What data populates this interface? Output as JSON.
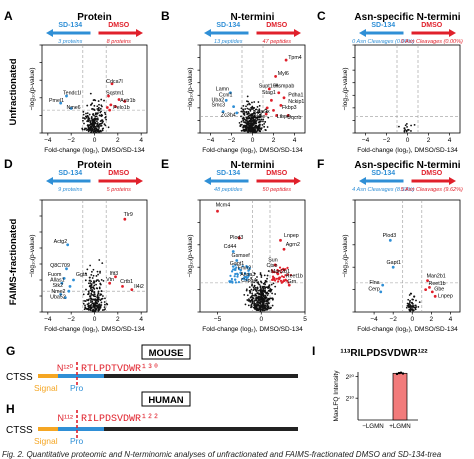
{
  "figure": {
    "caption": "Fig. 2. Quantitative proteomic and N-terminomic analyses of unfractionated and FAIMS-fractionated DMSO and SD-134-trea",
    "row_labels": [
      "Unfractionated",
      "FAIMS-fractionated"
    ],
    "common": {
      "xlabel": "Fold-change (log₂), DMSO/SD-134",
      "ylabel": "−log₁₀(p-value)",
      "left_arrow": "SD-134",
      "right_arrow": "DMSO"
    },
    "colors": {
      "blue": "#2f8fd6",
      "red": "#e0202b",
      "point": "#111111",
      "dashed": "#9a9a9a",
      "signal": "#f5a623",
      "pro": "#2f8fd6",
      "chain": "#222222",
      "bar": "#f27b7b"
    }
  },
  "chart_data": [
    {
      "panel": "A",
      "type": "scatter",
      "title": "Protein",
      "left_count": "3 proteins",
      "right_count": "8 proteins",
      "xlim": [
        -4.5,
        4.5
      ],
      "xticks": [
        -4,
        -2,
        0,
        2,
        4
      ],
      "ylim": [
        0,
        5
      ],
      "labels": [
        {
          "text": "Cdca7l",
          "x": 1.0,
          "y": 2.85,
          "color": "red"
        },
        {
          "text": "Tendc1l",
          "x": -2.7,
          "y": 2.2,
          "color": "red"
        },
        {
          "text": "Sqstm1",
          "x": 1.0,
          "y": 2.2,
          "color": "red"
        },
        {
          "text": "Pmel1",
          "x": -3.9,
          "y": 1.75,
          "color": "red"
        },
        {
          "text": "Actr1b",
          "x": 2.2,
          "y": 1.75,
          "color": "red"
        },
        {
          "text": "Nme6",
          "x": -2.4,
          "y": 1.35,
          "color": "red"
        },
        {
          "text": "Pelo1b",
          "x": 1.6,
          "y": 1.35,
          "color": "red"
        }
      ],
      "highlight": [
        {
          "x": 1.5,
          "y": 2.8,
          "c": "red"
        },
        {
          "x": 1.2,
          "y": 2.1,
          "c": "red"
        },
        {
          "x": 2.1,
          "y": 1.9,
          "c": "red"
        },
        {
          "x": 1.8,
          "y": 1.5,
          "c": "red"
        },
        {
          "x": 1.4,
          "y": 1.6,
          "c": "red"
        },
        {
          "x": 2.6,
          "y": 1.8,
          "c": "red"
        },
        {
          "x": 1.3,
          "y": 1.3,
          "c": "red"
        },
        {
          "x": 1.1,
          "y": 1.45,
          "c": "red"
        },
        {
          "x": -2.4,
          "y": 2.1,
          "c": "blue"
        },
        {
          "x": -2.9,
          "y": 1.7,
          "c": "blue"
        },
        {
          "x": -2.0,
          "y": 1.4,
          "c": "blue"
        }
      ],
      "cloud": {
        "n": 230,
        "sx": 0.8,
        "ymax": 2.2
      }
    },
    {
      "panel": "B",
      "type": "scatter",
      "title": "N-termini",
      "left_count": "13 peptides",
      "right_count": "47 peptides",
      "xlim": [
        -5,
        5
      ],
      "xticks": [
        -4,
        -2,
        0,
        2,
        4
      ],
      "ylim": [
        0,
        7
      ],
      "labels": [
        {
          "text": "Tpm4",
          "x": 3.4,
          "y": 5.9,
          "color": "red"
        },
        {
          "text": "Myl6",
          "x": 2.4,
          "y": 4.6,
          "color": "red"
        },
        {
          "text": "Supt16h",
          "x": 0.6,
          "y": 3.6,
          "color": "red"
        },
        {
          "text": "Hsmpab",
          "x": 2.1,
          "y": 3.6,
          "color": "red"
        },
        {
          "text": "Stag1",
          "x": 0.9,
          "y": 3.1,
          "color": "red"
        },
        {
          "text": "Lamn",
          "x": -3.5,
          "y": 3.4,
          "color": "red"
        },
        {
          "text": "Ccnl1",
          "x": -3.2,
          "y": 2.9,
          "color": "red"
        },
        {
          "text": "Uba2",
          "x": -3.9,
          "y": 2.5,
          "color": "red"
        },
        {
          "text": "Smc3",
          "x": -3.9,
          "y": 2.1,
          "color": "red"
        },
        {
          "text": "Pdha1",
          "x": 3.4,
          "y": 2.9,
          "color": "red"
        },
        {
          "text": "Nckip1",
          "x": 3.4,
          "y": 2.4,
          "color": "red"
        },
        {
          "text": "Fkbp3",
          "x": 2.8,
          "y": 1.9,
          "color": "red"
        },
        {
          "text": "Zc3h4",
          "x": -3.0,
          "y": 1.3,
          "color": "red"
        },
        {
          "text": "Usp9x",
          "x": 0.2,
          "y": 1.6,
          "color": "red"
        },
        {
          "text": "Ltbp4",
          "x": 2.3,
          "y": 1.2,
          "color": "red"
        },
        {
          "text": "Gsdme",
          "x": -0.4,
          "y": 1.2,
          "color": "red"
        },
        {
          "text": "Uqcrb",
          "x": 3.3,
          "y": 1.1,
          "color": "red"
        }
      ],
      "highlight": [
        {
          "x": 3.2,
          "y": 5.8,
          "c": "red"
        },
        {
          "x": 2.2,
          "y": 4.5,
          "c": "red"
        },
        {
          "x": 1.6,
          "y": 3.5,
          "c": "red"
        },
        {
          "x": 2.5,
          "y": 3.2,
          "c": "red"
        },
        {
          "x": 3.0,
          "y": 2.8,
          "c": "red"
        },
        {
          "x": 1.8,
          "y": 2.6,
          "c": "red"
        },
        {
          "x": 2.7,
          "y": 2.2,
          "c": "red"
        },
        {
          "x": 2.0,
          "y": 1.8,
          "c": "red"
        },
        {
          "x": 1.4,
          "y": 2.0,
          "c": "red"
        },
        {
          "x": 3.4,
          "y": 1.4,
          "c": "red"
        },
        {
          "x": 1.3,
          "y": 1.5,
          "c": "red"
        },
        {
          "x": 2.3,
          "y": 1.4,
          "c": "red"
        },
        {
          "x": -2.1,
          "y": 3.2,
          "c": "blue"
        },
        {
          "x": -2.5,
          "y": 2.6,
          "c": "blue"
        },
        {
          "x": -1.8,
          "y": 2.1,
          "c": "blue"
        },
        {
          "x": -2.8,
          "y": 1.7,
          "c": "blue"
        },
        {
          "x": -1.5,
          "y": 1.6,
          "c": "blue"
        }
      ],
      "cloud": {
        "n": 360,
        "sx": 1.0,
        "ymax": 3.2
      }
    },
    {
      "panel": "C",
      "type": "scatter",
      "title": "Asn-specific N-termini",
      "left_count": "0 Asn Cleavages (0.00%)",
      "right_count": "0 Asn Cleavages (0.00%)",
      "xlim": [
        -5,
        5
      ],
      "xticks": [
        -4,
        -2,
        0,
        2,
        4
      ],
      "ylim": [
        0,
        7
      ],
      "labels": [],
      "highlight": [],
      "cloud": {
        "n": 16,
        "sx": 0.5,
        "ymax": 0.9
      }
    },
    {
      "panel": "D",
      "type": "scatter",
      "title": "Protein",
      "left_count": "9 proteins",
      "right_count": "5 proteins",
      "xlim": [
        -4.5,
        4.5
      ],
      "xticks": [
        -4,
        -2,
        0,
        2,
        4
      ],
      "ylim": [
        0,
        7
      ],
      "labels": [
        {
          "text": "Tlr9",
          "x": 2.5,
          "y": 6.0,
          "color": "red"
        },
        {
          "text": "Actg2",
          "x": -3.5,
          "y": 4.3,
          "color": "red"
        },
        {
          "text": "Q8C709",
          "x": -3.8,
          "y": 2.8,
          "color": "red"
        },
        {
          "text": "Fuom",
          "x": -4.0,
          "y": 2.25,
          "color": "red"
        },
        {
          "text": "Allas1",
          "x": -3.8,
          "y": 1.9,
          "color": "red"
        },
        {
          "text": "Ggta",
          "x": -1.6,
          "y": 2.25,
          "color": "red"
        },
        {
          "text": "Ifit3",
          "x": 1.3,
          "y": 2.3,
          "color": "red"
        },
        {
          "text": "Vtn",
          "x": 1.0,
          "y": 1.95,
          "color": "red"
        },
        {
          "text": "Stk2",
          "x": -3.6,
          "y": 1.55,
          "color": "red"
        },
        {
          "text": "Nme2",
          "x": -3.7,
          "y": 1.2,
          "color": "red"
        },
        {
          "text": "Crtb1",
          "x": 2.2,
          "y": 1.8,
          "color": "red"
        },
        {
          "text": "Il4i2",
          "x": 3.4,
          "y": 1.5,
          "color": "red"
        },
        {
          "text": "Uba52",
          "x": -3.8,
          "y": 0.85,
          "color": "red"
        }
      ],
      "highlight": [
        {
          "x": 2.6,
          "y": 5.8,
          "c": "red"
        },
        {
          "x": 1.8,
          "y": 2.2,
          "c": "red"
        },
        {
          "x": 1.3,
          "y": 1.8,
          "c": "red"
        },
        {
          "x": 2.4,
          "y": 1.6,
          "c": "red"
        },
        {
          "x": 3.2,
          "y": 1.4,
          "c": "red"
        },
        {
          "x": -2.3,
          "y": 4.2,
          "c": "blue"
        },
        {
          "x": -2.4,
          "y": 2.7,
          "c": "blue"
        },
        {
          "x": -2.6,
          "y": 2.1,
          "c": "blue"
        },
        {
          "x": -2.8,
          "y": 1.8,
          "c": "blue"
        },
        {
          "x": -2.1,
          "y": 1.6,
          "c": "blue"
        },
        {
          "x": -2.2,
          "y": 1.3,
          "c": "blue"
        },
        {
          "x": -1.8,
          "y": 2.0,
          "c": "blue"
        },
        {
          "x": -2.9,
          "y": 1.1,
          "c": "blue"
        },
        {
          "x": -2.5,
          "y": 0.9,
          "c": "blue"
        }
      ],
      "cloud": {
        "n": 230,
        "sx": 0.75,
        "ymax": 3.3
      }
    },
    {
      "panel": "E",
      "type": "scatter",
      "title": "N-termini",
      "left_count": "48 peptides",
      "right_count": "50 peptides",
      "xlim": [
        -7,
        5
      ],
      "xticks": [
        -5,
        0,
        5
      ],
      "ylim": [
        0,
        5
      ],
      "labels": [
        {
          "text": "Mcm4",
          "x": -5.2,
          "y": 4.7,
          "color": "red"
        },
        {
          "text": "Plod3",
          "x": -3.6,
          "y": 3.25,
          "color": "red"
        },
        {
          "text": "Lnpep",
          "x": 2.6,
          "y": 3.35,
          "color": "red"
        },
        {
          "text": "Agrn2",
          "x": 2.8,
          "y": 2.95,
          "color": "red"
        },
        {
          "text": "Cd44",
          "x": -4.3,
          "y": 2.85,
          "color": "red"
        },
        {
          "text": "Gsmsef",
          "x": -3.4,
          "y": 2.45,
          "color": "red"
        },
        {
          "text": "Gapt1",
          "x": -3.6,
          "y": 2.1,
          "color": "red"
        },
        {
          "text": "Fmn2",
          "x": -2.7,
          "y": 1.9,
          "color": "red"
        },
        {
          "text": "Ctso",
          "x": 0.6,
          "y": 2.0,
          "color": "red"
        },
        {
          "text": "Man2b1",
          "x": 1.1,
          "y": 1.75,
          "color": "red"
        },
        {
          "text": "Sun",
          "x": 0.8,
          "y": 2.25,
          "color": "red"
        },
        {
          "text": "Reet1b",
          "x": 2.8,
          "y": 1.55,
          "color": "red"
        },
        {
          "text": "Anxa3",
          "x": -2.4,
          "y": 1.6,
          "color": "red"
        },
        {
          "text": "Cspg4",
          "x": -2.3,
          "y": 1.35,
          "color": "red"
        },
        {
          "text": "Grn",
          "x": 3.0,
          "y": 1.3,
          "color": "red"
        }
      ],
      "highlight": [
        {
          "x": -5.0,
          "y": 4.5,
          "c": "red"
        },
        {
          "x": -2.5,
          "y": 3.3,
          "c": "red"
        },
        {
          "x": 2.2,
          "y": 3.2,
          "c": "red"
        },
        {
          "x": 2.6,
          "y": 2.8,
          "c": "red"
        },
        {
          "x": -3.2,
          "y": 2.7,
          "c": "blue"
        },
        {
          "x": -2.8,
          "y": 2.3,
          "c": "blue"
        },
        {
          "x": -3.0,
          "y": 1.9,
          "c": "blue"
        },
        {
          "x": -1.6,
          "y": 2.0,
          "c": "blue"
        },
        {
          "x": 1.6,
          "y": 2.1,
          "c": "red"
        },
        {
          "x": 1.9,
          "y": 1.7,
          "c": "red"
        },
        {
          "x": 2.6,
          "y": 1.4,
          "c": "red"
        },
        {
          "x": 1.4,
          "y": 1.5,
          "c": "red"
        },
        {
          "x": 3.2,
          "y": 1.2,
          "c": "red"
        }
      ],
      "cloud": {
        "n": 380,
        "sx": 1.3,
        "ymax": 2.1,
        "blue_band": 48,
        "red_band": 40
      }
    },
    {
      "panel": "F",
      "type": "scatter",
      "title": "Asn-specific N-termini",
      "left_count": "4 Asn Cleavages (8.33%)",
      "right_count": "5 Asn Cleavages (9.62%)",
      "xlim": [
        -6,
        5
      ],
      "xticks": [
        -4,
        -2,
        0,
        2,
        4
      ],
      "ylim": [
        0,
        5
      ],
      "labels": [
        {
          "text": "Plod3",
          "x": -3.1,
          "y": 3.35,
          "color": "red"
        },
        {
          "text": "Gapt1",
          "x": -2.7,
          "y": 2.15,
          "color": "red"
        },
        {
          "text": "Man2b1",
          "x": 1.5,
          "y": 1.55,
          "color": "red"
        },
        {
          "text": "Reet1b",
          "x": 1.7,
          "y": 1.2,
          "color": "red"
        },
        {
          "text": "Flna",
          "x": -4.5,
          "y": 1.25,
          "color": "red"
        },
        {
          "text": "Gbe",
          "x": 2.3,
          "y": 0.95,
          "color": "red"
        },
        {
          "text": "Cerp",
          "x": -4.6,
          "y": 0.95,
          "color": "red"
        },
        {
          "text": "Lnpep",
          "x": 2.7,
          "y": 0.65,
          "color": "red"
        }
      ],
      "highlight": [
        {
          "x": -2.3,
          "y": 3.2,
          "c": "blue"
        },
        {
          "x": -2.0,
          "y": 2.0,
          "c": "blue"
        },
        {
          "x": -3.1,
          "y": 1.2,
          "c": "blue"
        },
        {
          "x": -3.3,
          "y": 0.9,
          "c": "blue"
        },
        {
          "x": 1.6,
          "y": 1.4,
          "c": "red"
        },
        {
          "x": 1.8,
          "y": 1.1,
          "c": "red"
        },
        {
          "x": 2.1,
          "y": 0.9,
          "c": "red"
        },
        {
          "x": 2.4,
          "y": 0.7,
          "c": "red"
        },
        {
          "x": 1.4,
          "y": 1.0,
          "c": "red"
        }
      ],
      "cloud": {
        "n": 55,
        "sx": 0.7,
        "ymax": 1.0
      }
    },
    {
      "panel": "I",
      "type": "bar",
      "title": "¹¹³RILPDSVDWR¹²²",
      "ylabel": "MaxLFQ Intensity",
      "categories": [
        "−LGMN",
        "+LGMN"
      ],
      "values_log2": [
        0,
        21.4
      ],
      "ylim_log2": [
        0,
        22
      ],
      "yticks": [
        "2¹⁰",
        "2²⁰"
      ],
      "points_log2": [
        21.1,
        21.5,
        21.7,
        21.3
      ]
    }
  ],
  "panelG": {
    "letter": "G",
    "label": "MOUSE",
    "protein": "CTSS",
    "site": "N¹²⁰",
    "peptide": "RTLPDTVDWR¹³⁰",
    "signal": "Signal",
    "pro": "Pro"
  },
  "panelH": {
    "letter": "H",
    "label": "HUMAN",
    "protein": "CTSS",
    "site": "N¹¹²",
    "peptide": "RILPDSVDWR¹²²",
    "signal": "Signal",
    "pro": "Pro"
  },
  "panelI_letter": "I"
}
